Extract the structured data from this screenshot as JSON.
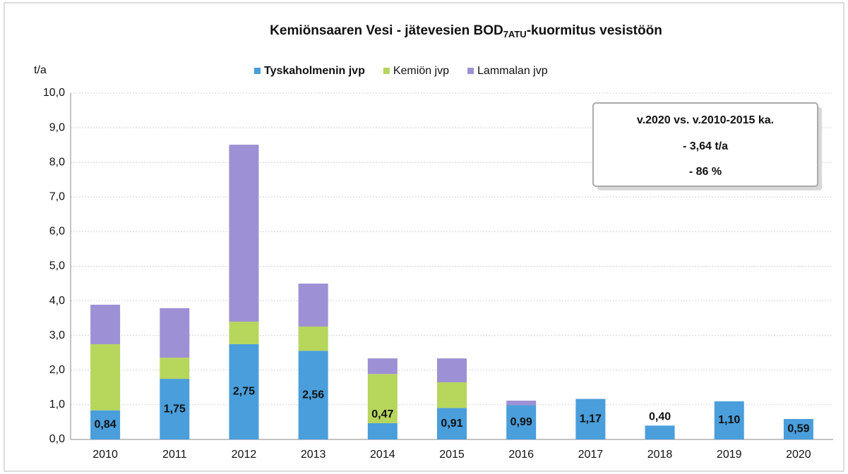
{
  "chart_data": {
    "type": "stacked_bar",
    "title": [
      "Kemiönsaaren Vesi - jätevesien BOD",
      "7ATU",
      "-kuormitus vesistöön"
    ],
    "y_label": "t/a",
    "categories": [
      "2010",
      "2011",
      "2012",
      "2013",
      "2014",
      "2015",
      "2016",
      "2017",
      "2018",
      "2019",
      "2020"
    ],
    "series": [
      {
        "name": "Tyskaholmenin jvp",
        "color": "#4a9edb",
        "values": [
          0.84,
          1.75,
          2.75,
          2.56,
          0.47,
          0.91,
          0.99,
          1.17,
          0.4,
          1.1,
          0.59
        ],
        "value_labels": [
          "0,84",
          "1,75",
          "2,75",
          "2,56",
          "0,47",
          "0,91",
          "0,99",
          "1,17",
          "0,40",
          "1,10",
          "0,59"
        ]
      },
      {
        "name": "Kemiön jvp",
        "color": "#b6d65c",
        "values": [
          1.91,
          0.61,
          0.65,
          0.7,
          1.42,
          0.74,
          0,
          0,
          0,
          0,
          0
        ]
      },
      {
        "name": "Lammalan jvp",
        "color": "#9e90d4",
        "values": [
          1.14,
          1.43,
          5.11,
          1.24,
          0.45,
          0.69,
          0.13,
          0,
          0,
          0,
          0
        ]
      }
    ],
    "ylim": [
      0,
      10
    ],
    "yticks": [
      {
        "value": 0,
        "label": "0,0"
      },
      {
        "value": 1,
        "label": "1,0"
      },
      {
        "value": 2,
        "label": "2,0"
      },
      {
        "value": 3,
        "label": "3,0"
      },
      {
        "value": 4,
        "label": "4,0"
      },
      {
        "value": 5,
        "label": "5,0"
      },
      {
        "value": 6,
        "label": "6,0"
      },
      {
        "value": 7,
        "label": "7,0"
      },
      {
        "value": 8,
        "label": "8,0"
      },
      {
        "value": 9,
        "label": "9,0"
      },
      {
        "value": 10,
        "label": "10,0"
      }
    ],
    "grid": true,
    "legend": "top",
    "annotation": [
      "v.2020 vs. v.2010-2015 ka.",
      "- 3,64 t/a",
      "- 86 %"
    ]
  }
}
